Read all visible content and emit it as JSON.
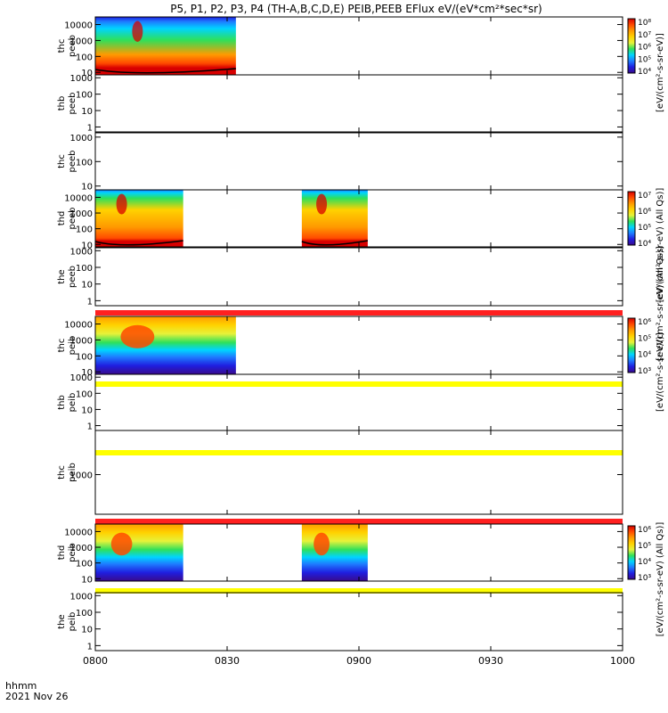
{
  "title": "P5, P1, P2, P3, P4 (TH-A,B,C,D,E) PEIB,PEEB EFlux eV/(eV*cm²*sec*sr)",
  "colors": {
    "ramp": [
      "#3a0a8c",
      "#1f1fe0",
      "#1e7cff",
      "#00d4ff",
      "#2fe05a",
      "#e6f23a",
      "#ffd200",
      "#ff9a00",
      "#ff4a00",
      "#d80000"
    ],
    "bar_red": "#ff2020",
    "bar_yellow": "#ffff00"
  },
  "xaxis": {
    "ticks": [
      "0800",
      "0830",
      "0900",
      "0930",
      "1000"
    ],
    "label1": "hhmm",
    "label2": "2021 Nov 26"
  },
  "chart_data": {
    "type": "heatmap",
    "x_range": [
      "0800",
      "1000"
    ],
    "y_scale": "log",
    "panels": [
      {
        "label1": "thc",
        "label2": "peeb",
        "yticks": [
          "10",
          "100",
          "1000",
          "10000"
        ],
        "ylim": [
          7,
          30000
        ],
        "spans": [
          [
            "0800",
            "0832"
          ]
        ],
        "cbar": {
          "ticks": [
            "10⁴",
            "10⁵",
            "10⁶",
            "10⁷",
            "10⁸"
          ],
          "label": "[eV/(cm²-s-sr-eV)]"
        }
      },
      {
        "label1": "thb",
        "label2": "peeb",
        "yticks": [
          "1",
          "10",
          "100",
          "1000"
        ],
        "ylim": [
          0.5,
          1500
        ],
        "spans": []
      },
      {
        "label1": "thc",
        "label2": "peeb",
        "yticks": [
          "10",
          "100",
          "1000"
        ],
        "ylim": [
          7,
          1500
        ],
        "spans": []
      },
      {
        "label1": "thd",
        "label2": "peeb",
        "yticks": [
          "10",
          "100",
          "1000",
          "10000"
        ],
        "ylim": [
          7,
          30000
        ],
        "spans": [
          [
            "0800",
            "0820"
          ],
          [
            "0847",
            "0902"
          ]
        ],
        "cbar": {
          "ticks": [
            "10⁴",
            "10⁵",
            "10⁶",
            "10⁷"
          ],
          "label": "[eV/(cm²-s-sr-eV) (All Qs)]"
        }
      },
      {
        "label1": "the",
        "label2": "peeb",
        "yticks": [
          "1",
          "10",
          "100",
          "1000"
        ],
        "ylim": [
          0.5,
          1500
        ],
        "spans": [],
        "cbar": {
          "ticks": [],
          "label": "[eV/(cm²-s-sr-eV) (All Qs)]"
        }
      },
      {
        "label1": "thc",
        "label2": "peib",
        "yticks": [
          "10",
          "100",
          "1000",
          "10000"
        ],
        "ylim": [
          7,
          30000
        ],
        "spans": [
          [
            "0800",
            "0832"
          ]
        ],
        "cbar": {
          "ticks": [
            "10³",
            "10⁴",
            "10⁵",
            "10⁶"
          ],
          "label": "[eV/(cm²-s-sr-eV)]"
        }
      },
      {
        "label1": "thb",
        "label2": "peib",
        "yticks": [
          "1",
          "10",
          "100",
          "1000"
        ],
        "ylim": [
          0.5,
          1500
        ],
        "spans": []
      },
      {
        "label1": "thc",
        "label2": "peib",
        "yticks": [
          "1000"
        ],
        "ylim": [
          200,
          6000
        ],
        "spans": []
      },
      {
        "label1": "thd",
        "label2": "peib",
        "yticks": [
          "10",
          "100",
          "1000",
          "10000"
        ],
        "ylim": [
          7,
          30000
        ],
        "spans": [
          [
            "0800",
            "0820"
          ],
          [
            "0847",
            "0902"
          ]
        ],
        "cbar": {
          "ticks": [
            "10³",
            "10⁴",
            "10⁵",
            "10⁶"
          ],
          "label": "[eV/(cm²-s-sr-eV) (All Qs)]"
        }
      },
      {
        "label1": "the",
        "label2": "peib",
        "yticks": [
          "1",
          "10",
          "100",
          "1000"
        ],
        "ylim": [
          0.5,
          1500
        ],
        "spans": []
      }
    ],
    "bars_between_panels": [
      {
        "after_panel": 4,
        "color": "red"
      },
      {
        "after_panel": 5,
        "color": "yellow"
      },
      {
        "after_panel": 6,
        "color": "yellow"
      },
      {
        "after_panel": 7,
        "color": "red"
      },
      {
        "after_panel": 8,
        "color": "yellow"
      }
    ]
  }
}
